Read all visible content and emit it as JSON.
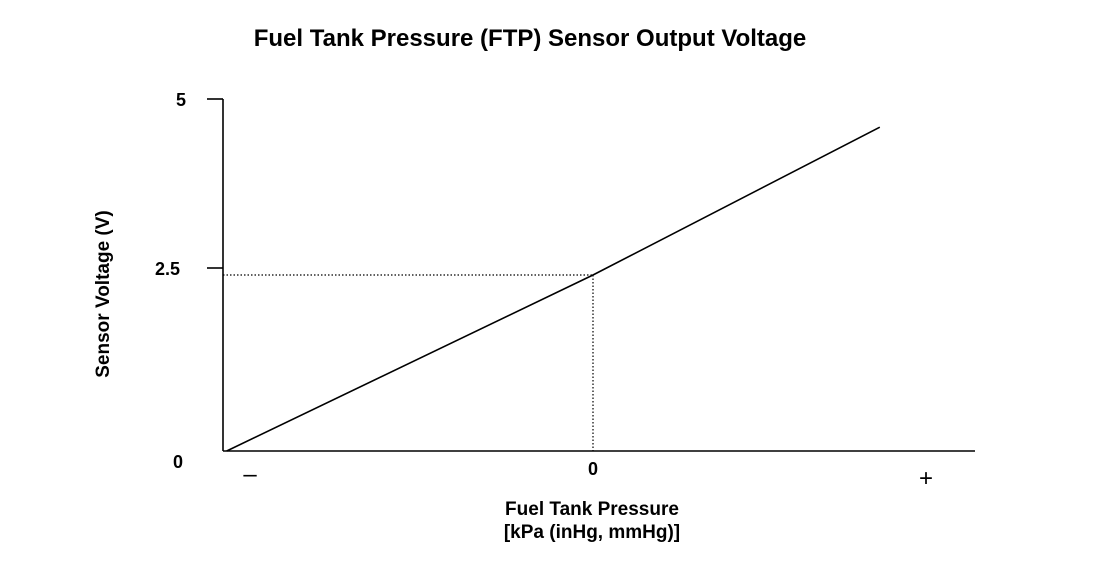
{
  "chart_data": {
    "type": "line",
    "title": "Fuel Tank Pressure (FTP) Sensor Output Voltage",
    "xlabel_line1": "Fuel Tank Pressure",
    "xlabel_line2": "[kPa (inHg, mmHg)]",
    "ylabel": "Sensor Voltage (V)",
    "x_ticks": {
      "negative": "–",
      "zero": "0",
      "positive": "+"
    },
    "y_ticks": [
      "0",
      "2.5",
      "5"
    ],
    "xlim": [
      -1,
      1.03
    ],
    "ylim": [
      0,
      5
    ],
    "series": [
      {
        "x": [
          -0.99,
          0,
          0.775
        ],
        "y": [
          0,
          2.5,
          4.6
        ]
      }
    ],
    "reference": {
      "x": 0,
      "y": 2.5
    },
    "grid": false,
    "colors": {
      "line": "#000000",
      "axis": "#000000",
      "background": "#ffffff"
    }
  }
}
